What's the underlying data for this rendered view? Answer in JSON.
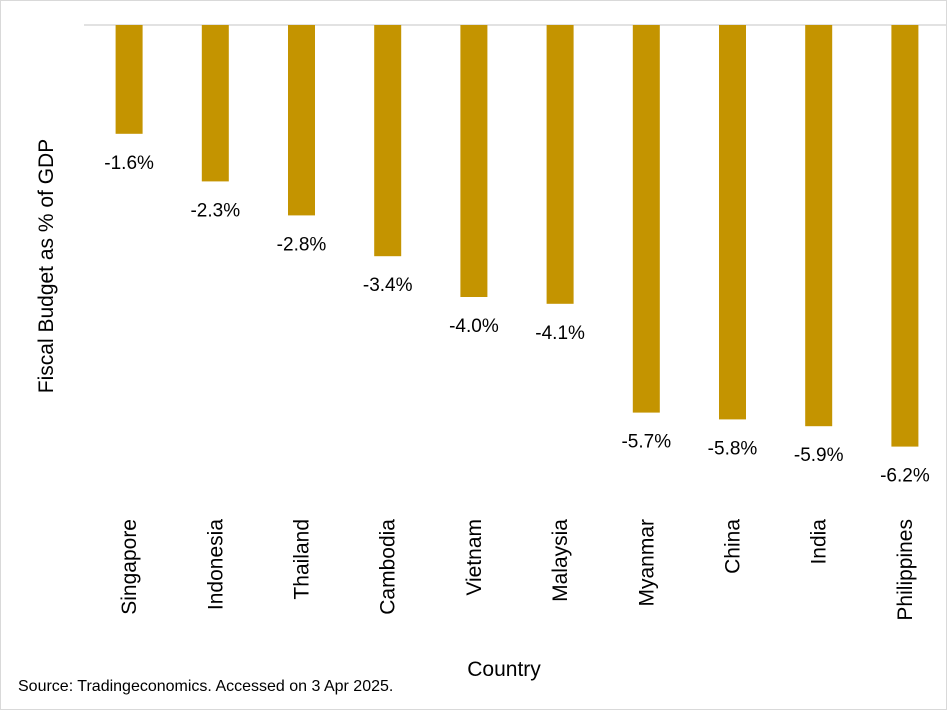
{
  "colors": {
    "bar": "#C49400",
    "axis_line": "#d9d9d9",
    "text": "#000000"
  },
  "chart_data": {
    "type": "bar",
    "orientation": "vertical",
    "xlabel": "Country",
    "ylabel": "Fiscal Budget as % of GDP",
    "categories": [
      "Singapore",
      "Indonesia",
      "Thailand",
      "Cambodia",
      "Vietnam",
      "Malaysia",
      "Myanmar",
      "China",
      "India",
      "Philippines"
    ],
    "series": [
      {
        "values": [
          -1.6,
          -2.3,
          -2.8,
          -3.4,
          -4.0,
          -4.1,
          -5.7,
          -5.8,
          -5.9,
          -6.2
        ]
      }
    ],
    "data_labels": [
      "-1.6%",
      "-2.3%",
      "-2.8%",
      "-3.4%",
      "-4.0%",
      "-4.1%",
      "-5.7%",
      "-5.8%",
      "-5.9%",
      "-6.2%"
    ],
    "ylim": [
      -7,
      0
    ],
    "grid": false,
    "legend": "none",
    "bar_color": "#C49400",
    "source": "Source: Tradingeconomics. Accessed on 3 Apr 2025."
  }
}
